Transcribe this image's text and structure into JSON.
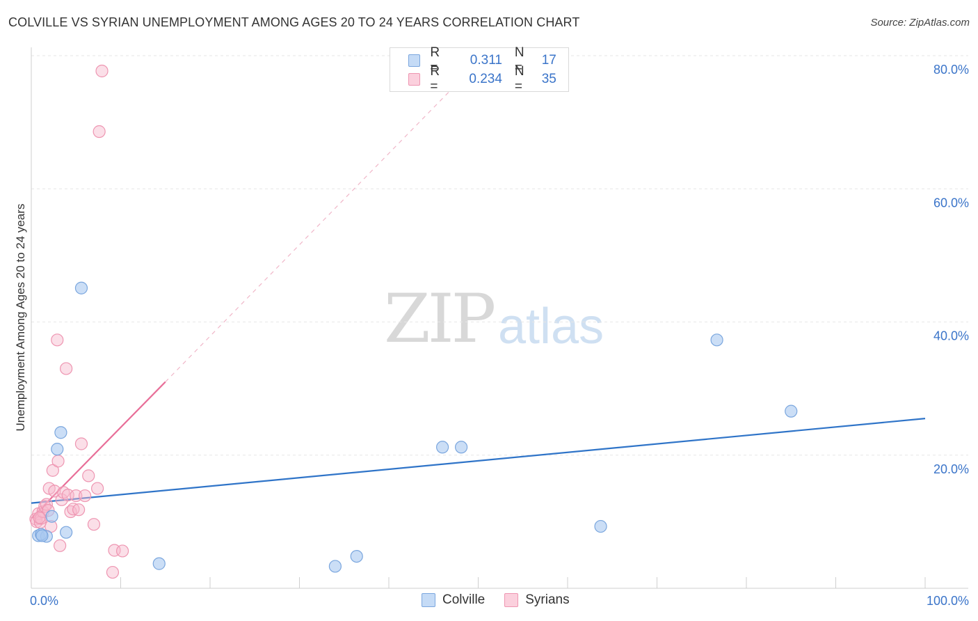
{
  "header": {
    "title": "COLVILLE VS SYRIAN UNEMPLOYMENT AMONG AGES 20 TO 24 YEARS CORRELATION CHART",
    "source": "Source: ZipAtlas.com"
  },
  "legend": {
    "rows": [
      {
        "r_label": "R =",
        "r_value": "0.311",
        "n_label": "N =",
        "n_value": "17"
      },
      {
        "r_label": "R =",
        "r_value": "0.234",
        "n_label": "N =",
        "n_value": "35"
      }
    ]
  },
  "bottom_legend": {
    "colville": "Colville",
    "syrians": "Syrians"
  },
  "watermark": {
    "zip": "ZIP",
    "atlas": "atlas"
  },
  "colors": {
    "colville_fill": "#a9c8f0",
    "colville_stroke": "#7aa6de",
    "colville_line": "#2f74c8",
    "syrians_fill": "#f7b8cb",
    "syrians_stroke": "#ee95b1",
    "syrians_line": "#e86e98",
    "axis_text": "#3a74c9",
    "grid": "#e6e6e6"
  },
  "chart_data": {
    "type": "scatter",
    "title": "COLVILLE VS SYRIAN UNEMPLOYMENT AMONG AGES 20 TO 24 YEARS CORRELATION CHART",
    "xlabel": "",
    "ylabel": "Unemployment Among Ages 20 to 24 years",
    "xlim": [
      0,
      100
    ],
    "ylim": [
      0,
      80
    ],
    "y_ticks": [
      20,
      40,
      60,
      80
    ],
    "y_tick_labels": [
      "20.0%",
      "40.0%",
      "60.0%",
      "80.0%"
    ],
    "x_tick_labels": [
      "0.0%",
      "100.0%"
    ],
    "series": [
      {
        "name": "Colville",
        "R": 0.311,
        "N": 17,
        "points": [
          [
            0.8,
            7.9
          ],
          [
            1.7,
            7.8
          ],
          [
            1.1,
            8.1
          ],
          [
            2.3,
            10.8
          ],
          [
            2.9,
            20.9
          ],
          [
            3.3,
            23.4
          ],
          [
            3.9,
            8.4
          ],
          [
            5.6,
            45.1
          ],
          [
            14.3,
            3.7
          ],
          [
            34.0,
            3.3
          ],
          [
            36.4,
            4.8
          ],
          [
            46.0,
            21.2
          ],
          [
            48.1,
            21.2
          ],
          [
            63.7,
            9.3
          ],
          [
            76.7,
            37.3
          ],
          [
            85.0,
            26.6
          ],
          [
            1.2,
            7.9
          ]
        ],
        "trend": {
          "x": [
            0,
            100
          ],
          "y": [
            12.8,
            25.5
          ],
          "style": "solid"
        }
      },
      {
        "name": "Syrians",
        "R": 0.234,
        "N": 35,
        "points": [
          [
            0.5,
            10.4
          ],
          [
            0.6,
            10.0
          ],
          [
            0.8,
            11.2
          ],
          [
            1.0,
            9.9
          ],
          [
            1.1,
            10.5
          ],
          [
            1.3,
            11.5
          ],
          [
            1.5,
            12.3
          ],
          [
            1.7,
            12.6
          ],
          [
            1.9,
            11.7
          ],
          [
            2.0,
            15.0
          ],
          [
            2.2,
            9.3
          ],
          [
            2.4,
            17.7
          ],
          [
            2.6,
            14.6
          ],
          [
            2.9,
            37.3
          ],
          [
            3.0,
            19.1
          ],
          [
            3.2,
            6.4
          ],
          [
            3.4,
            13.3
          ],
          [
            3.6,
            14.4
          ],
          [
            3.9,
            33.0
          ],
          [
            4.1,
            14.0
          ],
          [
            4.4,
            11.5
          ],
          [
            4.7,
            11.9
          ],
          [
            5.0,
            13.9
          ],
          [
            5.3,
            11.8
          ],
          [
            5.6,
            21.7
          ],
          [
            6.0,
            13.9
          ],
          [
            6.4,
            16.9
          ],
          [
            7.0,
            9.6
          ],
          [
            7.4,
            15.0
          ],
          [
            7.6,
            68.6
          ],
          [
            7.9,
            77.7
          ],
          [
            9.1,
            2.4
          ],
          [
            9.3,
            5.7
          ],
          [
            10.2,
            5.6
          ],
          [
            0.9,
            10.6
          ]
        ],
        "trend_solid": {
          "x": [
            0,
            15.0
          ],
          "y": [
            10.5,
            31.0
          ]
        },
        "trend_dashed": {
          "x": [
            15.0,
            48.5
          ],
          "y": [
            31.0,
            77.0
          ]
        }
      }
    ],
    "grid": true,
    "legend_position": "top-center"
  }
}
